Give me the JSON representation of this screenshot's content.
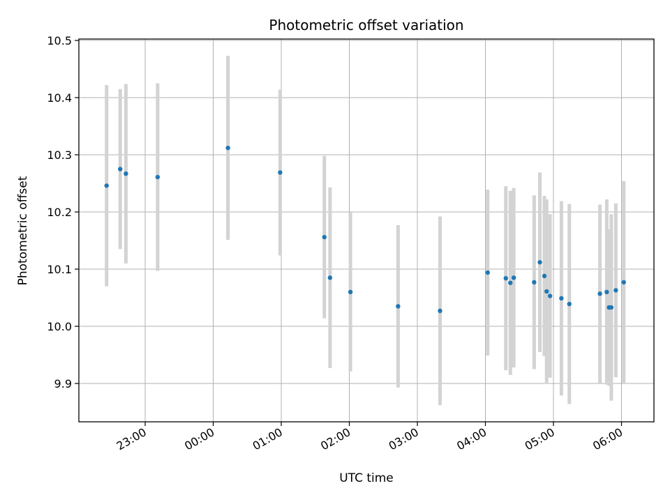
{
  "chart_data": {
    "type": "scatter",
    "title": "Photometric offset variation",
    "xlabel": "UTC time",
    "ylabel": "Photometric offset",
    "x_tick_labels": [
      "23:00",
      "00:00",
      "01:00",
      "02:00",
      "03:00",
      "04:00",
      "05:00",
      "06:00"
    ],
    "y_tick_labels": [
      "9.9",
      "10.0",
      "10.1",
      "10.2",
      "10.3",
      "10.4",
      "10.5"
    ],
    "y_ticks": [
      9.9,
      10.0,
      10.1,
      10.2,
      10.3,
      10.4,
      10.5
    ],
    "ylim": [
      9.847,
      10.5
    ],
    "grid": true,
    "point_color": "#1f77b4",
    "errorbar_color": "#d3d3d3",
    "points": [
      {
        "x": "22:26",
        "y": 10.246,
        "yerr": 0.176
      },
      {
        "x": "22:38",
        "y": 10.275,
        "yerr": 0.14
      },
      {
        "x": "22:43",
        "y": 10.267,
        "yerr": 0.157
      },
      {
        "x": "23:11",
        "y": 10.261,
        "yerr": 0.164
      },
      {
        "x": "00:13",
        "y": 10.312,
        "yerr": 0.161
      },
      {
        "x": "00:59",
        "y": 10.269,
        "yerr": 0.145
      },
      {
        "x": "01:38",
        "y": 10.156,
        "yerr": 0.142
      },
      {
        "x": "01:43",
        "y": 10.085,
        "yerr": 0.158
      },
      {
        "x": "02:01",
        "y": 10.06,
        "yerr": 0.139
      },
      {
        "x": "02:43",
        "y": 10.035,
        "yerr": 0.142
      },
      {
        "x": "03:20",
        "y": 10.027,
        "yerr": 0.165
      },
      {
        "x": "04:02",
        "y": 10.094,
        "yerr": 0.145
      },
      {
        "x": "04:18",
        "y": 10.084,
        "yerr": 0.161
      },
      {
        "x": "04:22",
        "y": 10.076,
        "yerr": 0.161
      },
      {
        "x": "04:25",
        "y": 10.085,
        "yerr": 0.157
      },
      {
        "x": "04:43",
        "y": 10.077,
        "yerr": 0.152
      },
      {
        "x": "04:48",
        "y": 10.112,
        "yerr": 0.157
      },
      {
        "x": "04:52",
        "y": 10.088,
        "yerr": 0.14
      },
      {
        "x": "04:54",
        "y": 10.061,
        "yerr": 0.161
      },
      {
        "x": "04:57",
        "y": 10.053,
        "yerr": 0.143
      },
      {
        "x": "05:07",
        "y": 10.049,
        "yerr": 0.17
      },
      {
        "x": "05:14",
        "y": 10.039,
        "yerr": 0.175
      },
      {
        "x": "05:41",
        "y": 10.057,
        "yerr": 0.156
      },
      {
        "x": "05:47",
        "y": 10.06,
        "yerr": 0.162
      },
      {
        "x": "05:49",
        "y": 10.033,
        "yerr": 0.137
      },
      {
        "x": "05:51",
        "y": 10.033,
        "yerr": 0.163
      },
      {
        "x": "05:55",
        "y": 10.063,
        "yerr": 0.152
      },
      {
        "x": "06:02",
        "y": 10.077,
        "yerr": 0.177
      }
    ]
  }
}
